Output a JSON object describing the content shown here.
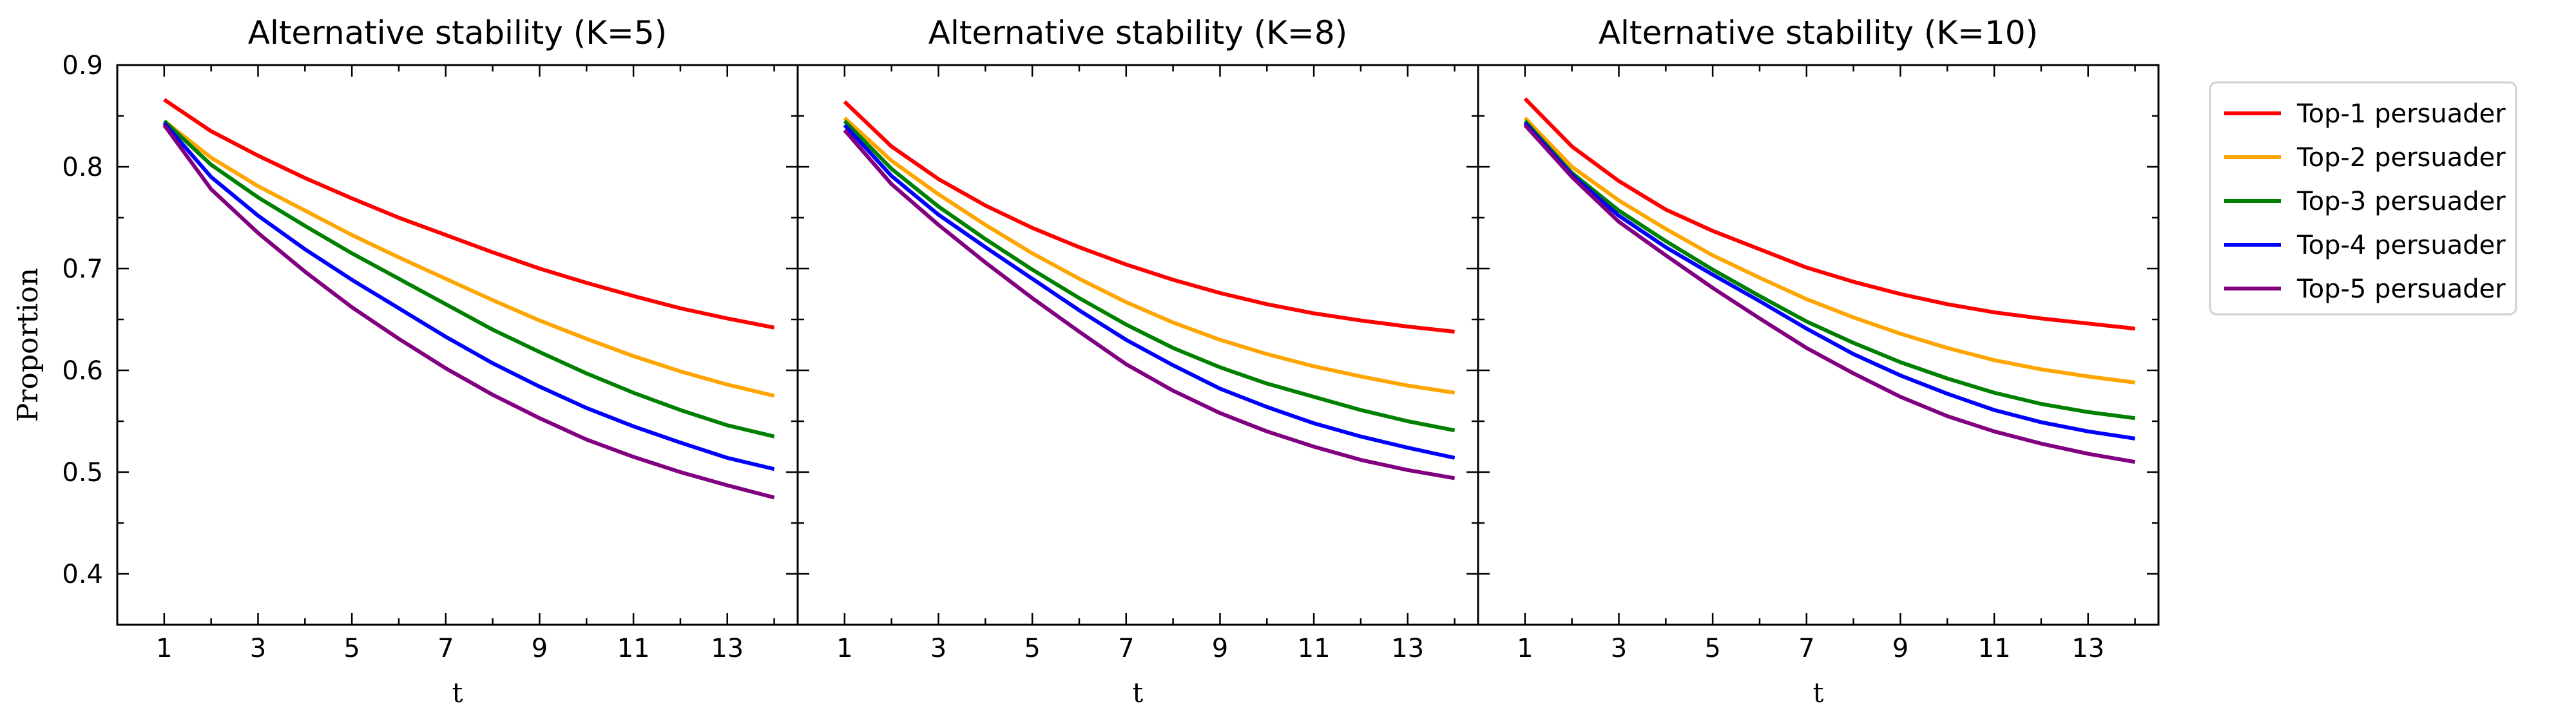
{
  "chart_data": [
    {
      "type": "line",
      "title": "Alternative stability (K=5)",
      "xlabel": "t",
      "ylabel": "Proportion",
      "xlim": [
        0.0,
        14.5
      ],
      "ylim": [
        0.35,
        0.9
      ],
      "xticks": [
        1,
        3,
        5,
        7,
        9,
        11,
        13
      ],
      "yticks": [
        0.4,
        0.5,
        0.6,
        0.7,
        0.8,
        0.9
      ],
      "x": [
        1,
        2,
        3,
        4,
        5,
        6,
        7,
        8,
        9,
        10,
        11,
        12,
        13,
        14
      ],
      "series": [
        {
          "name": "Top-1 persuader",
          "color": "#ff0000",
          "values": [
            0.866,
            0.835,
            0.811,
            0.789,
            0.769,
            0.75,
            0.733,
            0.716,
            0.7,
            0.686,
            0.673,
            0.661,
            0.651,
            0.642
          ]
        },
        {
          "name": "Top-2 persuader",
          "color": "#ffa500",
          "values": [
            0.845,
            0.809,
            0.781,
            0.757,
            0.733,
            0.711,
            0.69,
            0.669,
            0.649,
            0.631,
            0.614,
            0.599,
            0.586,
            0.575
          ]
        },
        {
          "name": "Top-3 persuader",
          "color": "#008000",
          "values": [
            0.845,
            0.802,
            0.77,
            0.742,
            0.715,
            0.69,
            0.665,
            0.64,
            0.618,
            0.597,
            0.578,
            0.561,
            0.546,
            0.535
          ]
        },
        {
          "name": "Top-4 persuader",
          "color": "#0000ff",
          "values": [
            0.843,
            0.79,
            0.752,
            0.719,
            0.689,
            0.661,
            0.633,
            0.607,
            0.584,
            0.563,
            0.545,
            0.529,
            0.514,
            0.503
          ]
        },
        {
          "name": "Top-5 persuader",
          "color": "#800080",
          "values": [
            0.841,
            0.778,
            0.735,
            0.697,
            0.662,
            0.631,
            0.602,
            0.576,
            0.553,
            0.532,
            0.515,
            0.5,
            0.487,
            0.475
          ]
        }
      ]
    },
    {
      "type": "line",
      "title": "Alternative stability (K=8)",
      "xlabel": "t",
      "ylabel": "",
      "xlim": [
        0.0,
        14.5
      ],
      "ylim": [
        0.35,
        0.9
      ],
      "xticks": [
        1,
        3,
        5,
        7,
        9,
        11,
        13
      ],
      "yticks": [
        0.4,
        0.5,
        0.6,
        0.7,
        0.8,
        0.9
      ],
      "x": [
        1,
        2,
        3,
        4,
        5,
        6,
        7,
        8,
        9,
        10,
        11,
        12,
        13,
        14
      ],
      "series": [
        {
          "name": "Top-1 persuader",
          "color": "#ff0000",
          "values": [
            0.864,
            0.82,
            0.788,
            0.762,
            0.74,
            0.721,
            0.704,
            0.689,
            0.676,
            0.665,
            0.656,
            0.649,
            0.643,
            0.638
          ]
        },
        {
          "name": "Top-2 persuader",
          "color": "#ffa500",
          "values": [
            0.848,
            0.806,
            0.773,
            0.743,
            0.715,
            0.69,
            0.667,
            0.647,
            0.63,
            0.616,
            0.604,
            0.594,
            0.585,
            0.578
          ]
        },
        {
          "name": "Top-3 persuader",
          "color": "#008000",
          "values": [
            0.845,
            0.798,
            0.761,
            0.729,
            0.699,
            0.671,
            0.645,
            0.622,
            0.603,
            0.587,
            0.574,
            0.561,
            0.55,
            0.541
          ]
        },
        {
          "name": "Top-4 persuader",
          "color": "#0000ff",
          "values": [
            0.841,
            0.791,
            0.753,
            0.721,
            0.69,
            0.659,
            0.63,
            0.605,
            0.582,
            0.564,
            0.548,
            0.535,
            0.524,
            0.514
          ]
        },
        {
          "name": "Top-5 persuader",
          "color": "#800080",
          "values": [
            0.836,
            0.783,
            0.743,
            0.706,
            0.671,
            0.638,
            0.606,
            0.58,
            0.558,
            0.54,
            0.525,
            0.512,
            0.502,
            0.494
          ]
        }
      ]
    },
    {
      "type": "line",
      "title": "Alternative stability (K=10)",
      "xlabel": "t",
      "ylabel": "",
      "xlim": [
        0.0,
        14.5
      ],
      "ylim": [
        0.35,
        0.9
      ],
      "xticks": [
        1,
        3,
        5,
        7,
        9,
        11,
        13
      ],
      "yticks": [
        0.4,
        0.5,
        0.6,
        0.7,
        0.8,
        0.9
      ],
      "x": [
        1,
        2,
        3,
        4,
        5,
        6,
        7,
        8,
        9,
        10,
        11,
        12,
        13,
        14
      ],
      "series": [
        {
          "name": "Top-1 persuader",
          "color": "#ff0000",
          "values": [
            0.867,
            0.82,
            0.786,
            0.758,
            0.737,
            0.719,
            0.701,
            0.687,
            0.675,
            0.665,
            0.657,
            0.651,
            0.646,
            0.641
          ]
        },
        {
          "name": "Top-2 persuader",
          "color": "#ffa500",
          "values": [
            0.848,
            0.8,
            0.767,
            0.739,
            0.713,
            0.691,
            0.67,
            0.652,
            0.636,
            0.622,
            0.61,
            0.601,
            0.594,
            0.588
          ]
        },
        {
          "name": "Top-3 persuader",
          "color": "#008000",
          "values": [
            0.845,
            0.794,
            0.757,
            0.727,
            0.699,
            0.673,
            0.648,
            0.627,
            0.608,
            0.592,
            0.578,
            0.567,
            0.559,
            0.553
          ]
        },
        {
          "name": "Top-4 persuader",
          "color": "#0000ff",
          "values": [
            0.843,
            0.792,
            0.752,
            0.721,
            0.694,
            0.668,
            0.641,
            0.616,
            0.595,
            0.577,
            0.561,
            0.549,
            0.54,
            0.533
          ]
        },
        {
          "name": "Top-5 persuader",
          "color": "#800080",
          "values": [
            0.841,
            0.79,
            0.746,
            0.713,
            0.681,
            0.651,
            0.622,
            0.597,
            0.574,
            0.555,
            0.54,
            0.528,
            0.518,
            0.51
          ]
        }
      ]
    }
  ],
  "legend": {
    "placement": "right",
    "entries": [
      {
        "label": "Top-1 persuader",
        "color": "#ff0000"
      },
      {
        "label": "Top-2 persuader",
        "color": "#ffa500"
      },
      {
        "label": "Top-3 persuader",
        "color": "#008000"
      },
      {
        "label": "Top-4 persuader",
        "color": "#0000ff"
      },
      {
        "label": "Top-5 persuader",
        "color": "#800080"
      }
    ]
  }
}
